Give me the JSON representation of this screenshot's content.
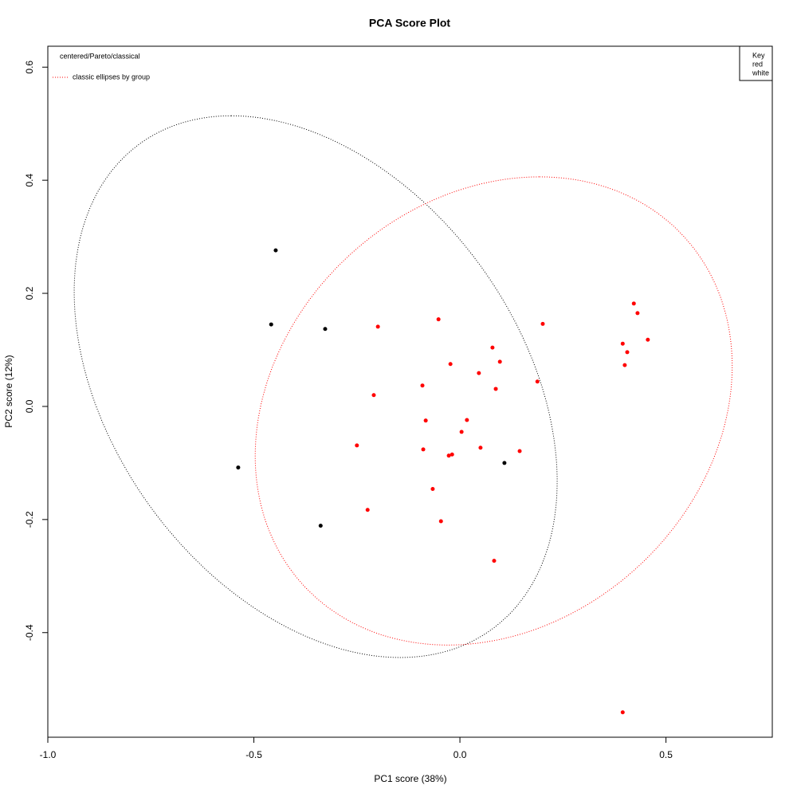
{
  "chart_data": {
    "type": "scatter",
    "title": "PCA Score Plot",
    "xlabel": "PC1 score (38%)",
    "ylabel": "PC2 score (12%)",
    "annotation": "centered/Pareto/classical",
    "ellipse_label": "classic ellipses by group",
    "legend_title": "Key",
    "legend_position": "top-right",
    "xlim": [
      -1.0,
      0.758
    ],
    "ylim": [
      -0.585,
      0.637
    ],
    "xticks": [
      {
        "value": -1.0,
        "label": "-1.0"
      },
      -0.5,
      {
        "value": 0,
        "label": "0.0"
      },
      0.5
    ],
    "yticks": [
      -0.4,
      -0.2,
      {
        "value": 0,
        "label": "0.0"
      },
      0.2,
      0.4,
      0.6
    ],
    "series": [
      {
        "name": "red",
        "color": "#ff0000",
        "x": [
          -0.052,
          0.201,
          -0.199,
          0.422,
          0.431,
          0.456,
          0.395,
          0.406,
          0.4,
          0.079,
          0.097,
          -0.023,
          0.046,
          0.188,
          -0.091,
          0.087,
          -0.209,
          0.017,
          -0.083,
          0.004,
          -0.25,
          -0.089,
          0.05,
          0.145,
          -0.019,
          -0.027,
          -0.066,
          -0.224,
          -0.046,
          0.083,
          0.395
        ],
        "y": [
          0.154,
          0.146,
          0.141,
          0.182,
          0.165,
          0.118,
          0.111,
          0.096,
          0.073,
          0.104,
          0.079,
          0.075,
          0.059,
          0.044,
          0.037,
          0.031,
          0.02,
          -0.024,
          -0.025,
          -0.045,
          -0.069,
          -0.076,
          -0.073,
          -0.079,
          -0.085,
          -0.087,
          -0.146,
          -0.183,
          -0.203,
          -0.273,
          -0.541
        ]
      },
      {
        "name": "white",
        "color": "#000000",
        "x": [
          -0.447,
          -0.458,
          -0.327,
          -0.538,
          -0.338,
          0.108
        ],
        "y": [
          0.276,
          0.145,
          0.137,
          -0.108,
          -0.211,
          -0.1
        ]
      }
    ],
    "ellipses": [
      {
        "color": "#000000",
        "center": [
          -0.35,
          0.035
        ],
        "axis_a": [
          -0.205,
          0.479
        ],
        "axis_b": [
          0.549,
          0
        ]
      },
      {
        "color": "#ff0000",
        "center": [
          0.082,
          -0.008
        ],
        "axis_a": [
          0.111,
          0.414
        ],
        "axis_b": [
          0.568,
          0
        ]
      }
    ]
  }
}
